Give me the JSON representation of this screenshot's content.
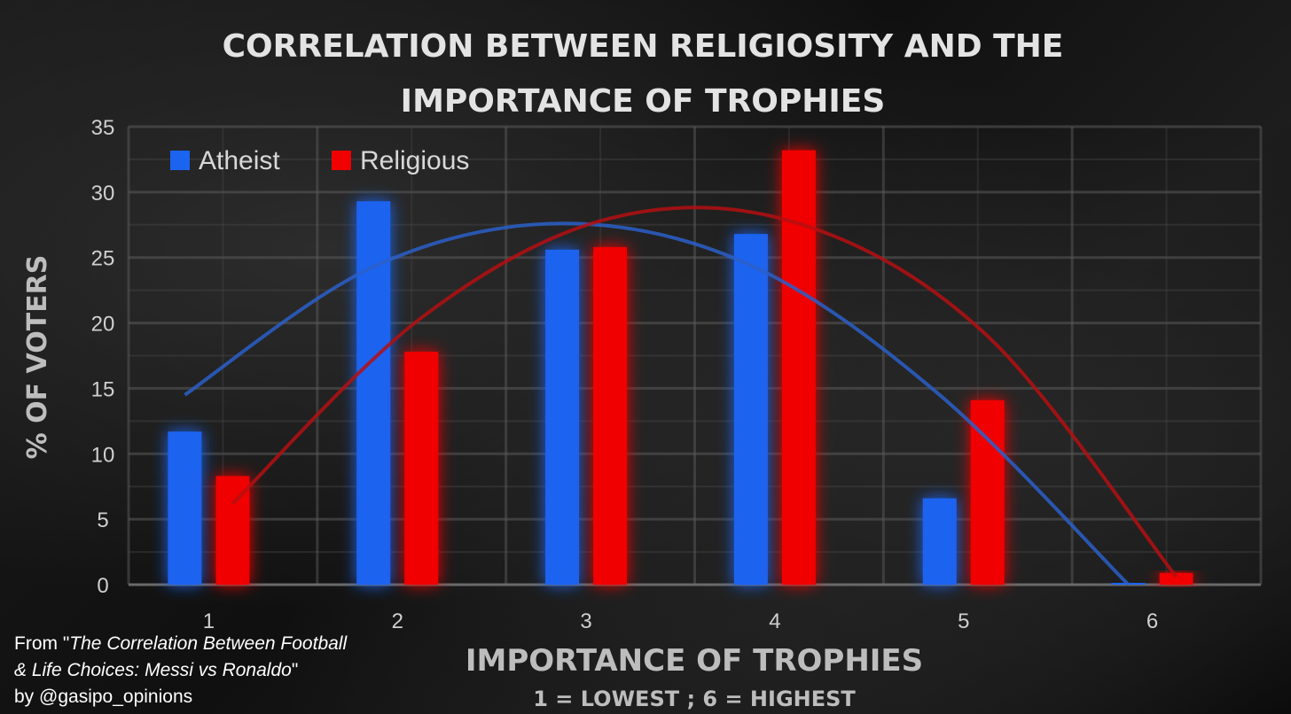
{
  "chart_data": {
    "type": "bar",
    "title_lines": [
      "CORRELATION BETWEEN RELIGIOSITY AND THE",
      "IMPORTANCE OF TROPHIES"
    ],
    "xlabel": "IMPORTANCE OF TROPHIES",
    "xlabel_sub": "1 = LOWEST ; 6 = HIGHEST",
    "ylabel": "% OF VOTERS",
    "categories": [
      "1",
      "2",
      "3",
      "4",
      "5",
      "6"
    ],
    "ylim": [
      0,
      35
    ],
    "yticks": [
      "0",
      "5",
      "10",
      "15",
      "20",
      "25",
      "30",
      "35"
    ],
    "grid": true,
    "legend_position": "top-left",
    "series": [
      {
        "name": "Atheist",
        "color": "#1a64f0",
        "values": [
          11.7,
          29.3,
          25.6,
          26.8,
          6.6,
          0.1
        ],
        "trendline": [
          14.5,
          24.3,
          27.6,
          24.4,
          14.5,
          0.0
        ]
      },
      {
        "name": "Religious",
        "color": "#f00000",
        "values": [
          8.3,
          17.8,
          25.8,
          33.2,
          14.1,
          0.9
        ]
      }
    ],
    "trendline_religious": [
      6.2,
      20.4,
      28.0,
      27.6,
      19.0,
      0.6
    ]
  },
  "credit": {
    "line1_prefix": "From \"",
    "italic1": "The Correlation Between Football",
    "italic2": "& Life Choices: Messi vs Ronaldo",
    "line2_suffix": "\"",
    "line3": "by @gasipo_opinions"
  }
}
